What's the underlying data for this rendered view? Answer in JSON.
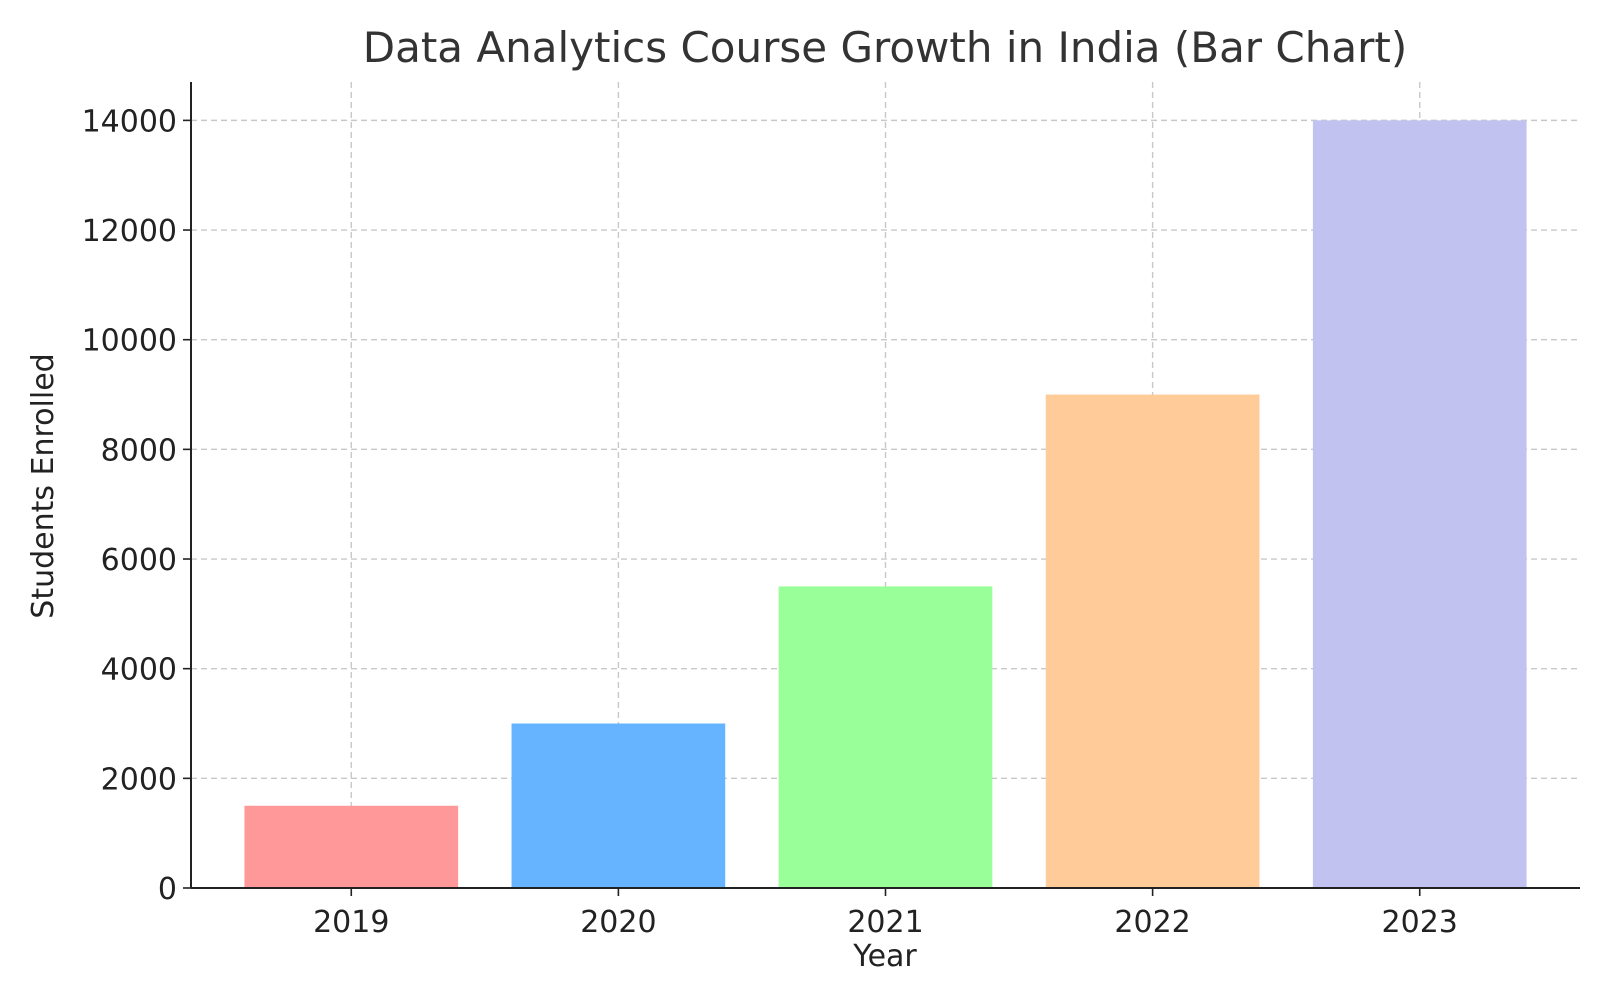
{
  "chart_data": {
    "type": "bar",
    "title": "Data Analytics Course Growth in India (Bar Chart)",
    "xlabel": "Year",
    "ylabel": "Students Enrolled",
    "categories": [
      "2019",
      "2020",
      "2021",
      "2022",
      "2023"
    ],
    "values": [
      1500,
      3000,
      5500,
      9000,
      14000
    ],
    "colors": [
      "#ff9999",
      "#66b3ff",
      "#99ff99",
      "#ffcc99",
      "#c2c2f0"
    ],
    "ylim": [
      0,
      14700
    ],
    "yticks": [
      0,
      2000,
      4000,
      6000,
      8000,
      10000,
      12000,
      14000
    ],
    "grid": true,
    "legend": "none"
  }
}
